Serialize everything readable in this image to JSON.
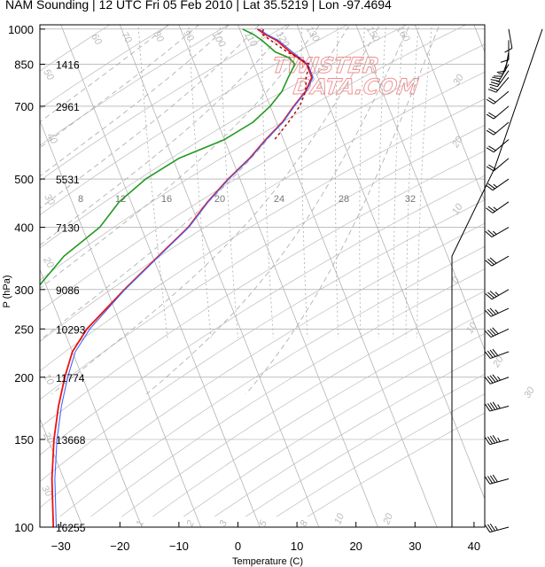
{
  "title": "NAM Sounding | 12 UTC Fri 05 Feb 2010 | Lat 35.5219 | Lon -97.4694",
  "watermark": [
    "TWISTER",
    "DATA.COM"
  ],
  "colors": {
    "temperature": "#ee1111",
    "dewpoint": "#229922",
    "virtual_temperature": "#4466ff",
    "parcel": "#aa0000"
  },
  "chart_data": {
    "type": "line",
    "title": "NAM Sounding | 12 UTC Fri 05 Feb 2010 | Lat 35.5219 | Lon -97.4694",
    "xlabel": "Temperature (C)",
    "ylabel": "P (hPa)",
    "xlim": [
      -34,
      47
    ],
    "ylim": [
      1020,
      100
    ],
    "y_scale": "log",
    "x_ticks": [
      "-30",
      "-20",
      "-10",
      "0",
      "10",
      "20",
      "30",
      "40"
    ],
    "y_ticks": [
      "100",
      "150",
      "200",
      "250",
      "300",
      "400",
      "500",
      "700",
      "850",
      "1000"
    ],
    "heights_m": [
      {
        "p": 100,
        "z": "16255"
      },
      {
        "p": 150,
        "z": "13668"
      },
      {
        "p": 200,
        "z": "11774"
      },
      {
        "p": 250,
        "z": "10293"
      },
      {
        "p": 300,
        "z": "9086"
      },
      {
        "p": 400,
        "z": "7130"
      },
      {
        "p": 500,
        "z": "5531"
      },
      {
        "p": 700,
        "z": "2961"
      },
      {
        "p": 850,
        "z": "1416"
      }
    ],
    "mixing_ratio_labels": [
      "8",
      "12",
      "16",
      "20",
      "24",
      "28",
      "32"
    ],
    "series": [
      {
        "key": "temperature",
        "points": [
          [
            1000,
            3
          ],
          [
            975,
            4
          ],
          [
            950,
            5.5
          ],
          [
            900,
            7
          ],
          [
            875,
            8
          ],
          [
            850,
            9
          ],
          [
            800,
            9
          ],
          [
            750,
            7
          ],
          [
            700,
            4
          ],
          [
            650,
            1
          ],
          [
            600,
            -3
          ],
          [
            550,
            -7
          ],
          [
            500,
            -12
          ],
          [
            450,
            -17
          ],
          [
            400,
            -22
          ],
          [
            350,
            -29
          ],
          [
            300,
            -37
          ],
          [
            250,
            -46
          ],
          [
            225,
            -50
          ],
          [
            200,
            -53
          ],
          [
            175,
            -56
          ],
          [
            150,
            -59
          ],
          [
            125,
            -62
          ],
          [
            100,
            -65
          ]
        ]
      },
      {
        "key": "virtual_temperature",
        "points": [
          [
            1000,
            3.3
          ],
          [
            975,
            4.3
          ],
          [
            950,
            5.8
          ],
          [
            900,
            7.4
          ],
          [
            875,
            8.3
          ],
          [
            850,
            9.2
          ],
          [
            800,
            9.2
          ],
          [
            750,
            7.1
          ],
          [
            700,
            4.1
          ],
          [
            650,
            1.1
          ],
          [
            600,
            -2.9
          ],
          [
            550,
            -6.9
          ],
          [
            500,
            -11.9
          ],
          [
            450,
            -16.9
          ],
          [
            400,
            -21.9
          ],
          [
            350,
            -28.9
          ],
          [
            300,
            -36.9
          ],
          [
            250,
            -45.5
          ],
          [
            225,
            -49.5
          ],
          [
            200,
            -52.5
          ],
          [
            175,
            -55.5
          ],
          [
            150,
            -58.5
          ],
          [
            125,
            -61.5
          ],
          [
            100,
            -64.5
          ]
        ]
      },
      {
        "key": "dewpoint",
        "points": [
          [
            1000,
            0.5
          ],
          [
            975,
            2
          ],
          [
            950,
            3
          ],
          [
            900,
            4.5
          ],
          [
            875,
            6.5
          ],
          [
            850,
            7
          ],
          [
            800,
            5
          ],
          [
            750,
            3
          ],
          [
            700,
            0
          ],
          [
            650,
            -4
          ],
          [
            600,
            -10
          ],
          [
            550,
            -19
          ],
          [
            500,
            -26
          ],
          [
            450,
            -32
          ],
          [
            400,
            -37
          ],
          [
            350,
            -45
          ],
          [
            300,
            -52
          ],
          [
            250,
            -60
          ],
          [
            200,
            -67
          ],
          [
            175,
            -67
          ],
          [
            150,
            -74
          ],
          [
            125,
            -78
          ],
          [
            100,
            -82
          ]
        ]
      },
      {
        "key": "parcel",
        "points": [
          [
            1000,
            4
          ],
          [
            975,
            3.5
          ],
          [
            950,
            4.5
          ],
          [
            925,
            5.5
          ],
          [
            900,
            6.5
          ],
          [
            875,
            8
          ],
          [
            850,
            9.5
          ],
          [
            800,
            8
          ],
          [
            750,
            7
          ],
          [
            700,
            5
          ],
          [
            650,
            2
          ],
          [
            600,
            -1.5
          ]
        ]
      }
    ],
    "wind_barbs": [
      {
        "p": 100,
        "dir": 255,
        "kt": 35
      },
      {
        "p": 125,
        "dir": 255,
        "kt": 40
      },
      {
        "p": 150,
        "dir": 255,
        "kt": 45
      },
      {
        "p": 175,
        "dir": 255,
        "kt": 45
      },
      {
        "p": 200,
        "dir": 250,
        "kt": 45
      },
      {
        "p": 225,
        "dir": 250,
        "kt": 40
      },
      {
        "p": 250,
        "dir": 245,
        "kt": 40
      },
      {
        "p": 275,
        "dir": 245,
        "kt": 35
      },
      {
        "p": 300,
        "dir": 240,
        "kt": 35
      },
      {
        "p": 350,
        "dir": 240,
        "kt": 30
      },
      {
        "p": 400,
        "dir": 240,
        "kt": 25
      },
      {
        "p": 450,
        "dir": 235,
        "kt": 25
      },
      {
        "p": 500,
        "dir": 235,
        "kt": 25
      },
      {
        "p": 550,
        "dir": 230,
        "kt": 20
      },
      {
        "p": 600,
        "dir": 230,
        "kt": 20
      },
      {
        "p": 650,
        "dir": 230,
        "kt": 20
      },
      {
        "p": 700,
        "dir": 230,
        "kt": 20
      },
      {
        "p": 750,
        "dir": 230,
        "kt": 20
      },
      {
        "p": 800,
        "dir": 220,
        "kt": 20
      },
      {
        "p": 825,
        "dir": 215,
        "kt": 25
      },
      {
        "p": 850,
        "dir": 210,
        "kt": 20
      },
      {
        "p": 875,
        "dir": 200,
        "kt": 15
      },
      {
        "p": 900,
        "dir": 190,
        "kt": 10
      },
      {
        "p": 950,
        "dir": 180,
        "kt": 10
      },
      {
        "p": 1000,
        "dir": 170,
        "kt": 10
      }
    ],
    "hodograph_line": [
      [
        100,
        0
      ],
      [
        350,
        0
      ],
      [
        525,
        16
      ],
      [
        1000,
        34
      ]
    ],
    "grid": true,
    "legend": "none"
  }
}
